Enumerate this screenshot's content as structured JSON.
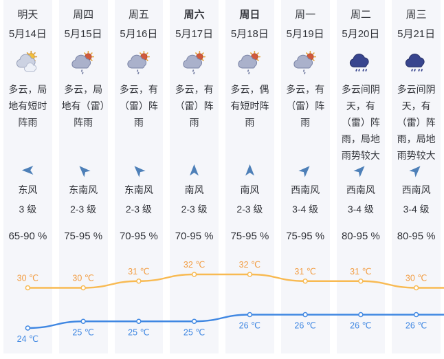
{
  "page": {
    "background": "#ffffff",
    "column_stripe_color": "#f5f6fa",
    "text_color": "#33353b"
  },
  "columns": [
    {
      "day": "明天",
      "date": "5月14日",
      "emphasis": false,
      "icon": "cloud-sun",
      "desc": "多云，局地有短时阵雨",
      "wind_dir": "东风",
      "wind_level": "3 级",
      "wind_arrow_deg": -90,
      "humidity": "65-90 %"
    },
    {
      "day": "周四",
      "date": "5月15日",
      "emphasis": false,
      "icon": "sun-shower",
      "desc": "多云，局地有（雷）阵雨",
      "wind_dir": "东南风",
      "wind_level": "2-3 级",
      "wind_arrow_deg": -45,
      "humidity": "75-95 %"
    },
    {
      "day": "周五",
      "date": "5月16日",
      "emphasis": false,
      "icon": "sun-shower",
      "desc": "多云，有（雷）阵雨",
      "wind_dir": "东南风",
      "wind_level": "2-3 级",
      "wind_arrow_deg": -45,
      "humidity": "70-95 %"
    },
    {
      "day": "周六",
      "date": "5月17日",
      "emphasis": true,
      "icon": "sun-shower",
      "desc": "多云，有（雷）阵雨",
      "wind_dir": "南风",
      "wind_level": "2-3 级",
      "wind_arrow_deg": 0,
      "humidity": "70-95 %"
    },
    {
      "day": "周日",
      "date": "5月18日",
      "emphasis": true,
      "icon": "sun-shower",
      "desc": "多云，偶有短时阵雨",
      "wind_dir": "南风",
      "wind_level": "2-3 级",
      "wind_arrow_deg": 0,
      "humidity": "75-95 %"
    },
    {
      "day": "周一",
      "date": "5月19日",
      "emphasis": false,
      "icon": "sun-shower",
      "desc": "多云，有（雷）阵雨",
      "wind_dir": "西南风",
      "wind_level": "3-4 级",
      "wind_arrow_deg": 45,
      "humidity": "75-95 %"
    },
    {
      "day": "周二",
      "date": "5月20日",
      "emphasis": false,
      "icon": "rain",
      "desc": "多云间阴天，有（雷）阵雨，局地雨势较大",
      "wind_dir": "西南风",
      "wind_level": "3-4 级",
      "wind_arrow_deg": 45,
      "humidity": "80-95 %"
    },
    {
      "day": "周三",
      "date": "5月21日",
      "emphasis": false,
      "icon": "rain",
      "desc": "多云间阴天，有（雷）阵雨，局地雨势较大",
      "wind_dir": "西南风",
      "wind_level": "3-4 级",
      "wind_arrow_deg": 45,
      "humidity": "80-95 %"
    }
  ],
  "chart_data": {
    "type": "line",
    "categories": [
      "5月14日",
      "5月15日",
      "5月16日",
      "5月17日",
      "5月18日",
      "5月19日",
      "5月20日",
      "5月21日"
    ],
    "series": [
      {
        "name": "high",
        "values": [
          30,
          30,
          31,
          32,
          32,
          31,
          31,
          30
        ],
        "unit": "℃",
        "line_color": "#f8ba52",
        "label_color": "#f29d43"
      },
      {
        "name": "low",
        "values": [
          24,
          25,
          25,
          25,
          26,
          26,
          26,
          26
        ],
        "unit": "℃",
        "line_color": "#3f87e2",
        "label_color": "#3f87e2"
      }
    ],
    "ylim": [
      23,
      33
    ],
    "grid": false,
    "legend": "none",
    "label_format": "{value} ℃",
    "wind_arrow_color": "#4e80b8"
  }
}
